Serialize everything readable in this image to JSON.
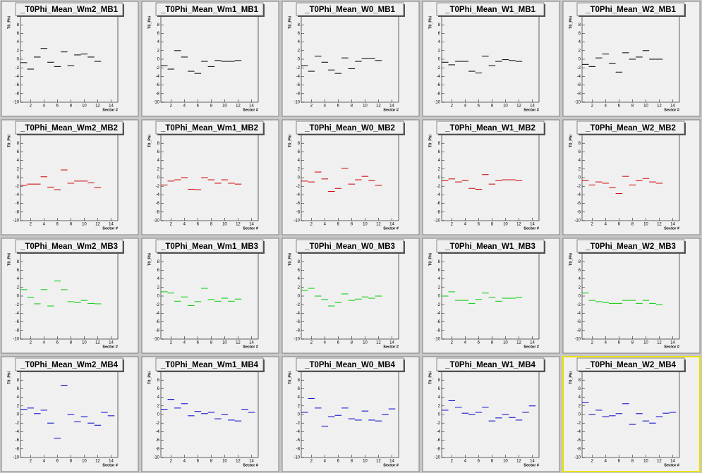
{
  "chart_data": [
    {
      "type": "scatter",
      "title": "_T0Phi_Mean_Wm2_MB1",
      "x_label": "Sector #",
      "y_label": "T0_Phi",
      "color": "#000000",
      "xlim": [
        0.5,
        15
      ],
      "ylim": [
        -10,
        10
      ],
      "xticks": [
        2,
        4,
        6,
        8,
        10,
        12,
        14
      ],
      "yticks": [
        -10,
        -8,
        -6,
        -4,
        -2,
        0,
        2,
        4,
        6,
        8
      ],
      "x": [
        1,
        2,
        3,
        4,
        5,
        6,
        7,
        8,
        9,
        10,
        11,
        12
      ],
      "values": [
        -0.8,
        -2.3,
        0.5,
        2.5,
        -0.7,
        -1.7,
        1.7,
        -1.5,
        1,
        1.2,
        0.5,
        -0.5
      ]
    },
    {
      "type": "scatter",
      "title": "_T0Phi_Mean_Wm1_MB1",
      "x_label": "Sector #",
      "y_label": "T0_Phi",
      "color": "#000000",
      "xlim": [
        0.5,
        15
      ],
      "ylim": [
        -10,
        10
      ],
      "xticks": [
        2,
        4,
        6,
        8,
        10,
        12,
        14
      ],
      "yticks": [
        -10,
        -8,
        -6,
        -4,
        -2,
        0,
        2,
        4,
        6,
        8
      ],
      "x": [
        1,
        2,
        3,
        4,
        5,
        6,
        7,
        8,
        9,
        10,
        11,
        12
      ],
      "values": [
        -1.5,
        -2.3,
        2,
        0.5,
        -2.8,
        -3.3,
        -0.5,
        -1.7,
        -0.3,
        -0.5,
        -0.5,
        -0.3
      ]
    },
    {
      "type": "scatter",
      "title": "_T0Phi_Mean_W0_MB1",
      "x_label": "Sector #",
      "y_label": "T0_Phi",
      "color": "#000000",
      "xlim": [
        0.5,
        15
      ],
      "ylim": [
        -10,
        10
      ],
      "xticks": [
        2,
        4,
        6,
        8,
        10,
        12,
        14
      ],
      "yticks": [
        -10,
        -8,
        -6,
        -4,
        -2,
        0,
        2,
        4,
        6,
        8
      ],
      "x": [
        1,
        2,
        3,
        4,
        5,
        6,
        7,
        8,
        9,
        10,
        11,
        12
      ],
      "values": [
        -1.5,
        -2.8,
        0.7,
        -0.7,
        -2.5,
        -3.3,
        0.3,
        -2.2,
        -0.5,
        0.2,
        0.2,
        -0.3
      ]
    },
    {
      "type": "scatter",
      "title": "_T0Phi_Mean_W1_MB1",
      "x_label": "Sector #",
      "y_label": "T0_Phi",
      "color": "#000000",
      "xlim": [
        0.5,
        15
      ],
      "ylim": [
        -10,
        10
      ],
      "xticks": [
        2,
        4,
        6,
        8,
        10,
        12,
        14
      ],
      "yticks": [
        -10,
        -8,
        -6,
        -4,
        -2,
        0,
        2,
        4,
        6,
        8
      ],
      "x": [
        1,
        2,
        3,
        4,
        5,
        6,
        7,
        8,
        9,
        10,
        11,
        12
      ],
      "values": [
        -0.7,
        -1.3,
        -0.5,
        -0.5,
        -2.8,
        -3.2,
        0.7,
        -1.5,
        -0.5,
        -0.1,
        -0.3,
        -0.5
      ]
    },
    {
      "type": "scatter",
      "title": "_T0Phi_Mean_W2_MB1",
      "x_label": "Sector #",
      "y_label": "T0_Phi",
      "color": "#000000",
      "xlim": [
        0.5,
        15
      ],
      "ylim": [
        -10,
        10
      ],
      "xticks": [
        2,
        4,
        6,
        8,
        10,
        12,
        14
      ],
      "yticks": [
        -10,
        -8,
        -6,
        -4,
        -2,
        0,
        2,
        4,
        6,
        8
      ],
      "x": [
        1,
        2,
        3,
        4,
        5,
        6,
        7,
        8,
        9,
        10,
        11,
        12
      ],
      "values": [
        -1.2,
        -1.7,
        0.3,
        1.2,
        -1,
        -3,
        1.5,
        0,
        0.5,
        2,
        0,
        0
      ]
    },
    {
      "type": "scatter",
      "title": "_T0Phi_Mean_Wm2_MB2",
      "x_label": "Sector #",
      "y_label": "T0_Phi",
      "color": "#cc0000",
      "xlim": [
        0.5,
        15
      ],
      "ylim": [
        -10,
        10
      ],
      "xticks": [
        2,
        4,
        6,
        8,
        10,
        12,
        14
      ],
      "yticks": [
        -10,
        -8,
        -6,
        -4,
        -2,
        0,
        2,
        4,
        6,
        8
      ],
      "x": [
        1,
        2,
        3,
        4,
        5,
        6,
        7,
        8,
        9,
        10,
        11,
        12
      ],
      "values": [
        -1.8,
        -1.5,
        -1.5,
        0.2,
        -2.2,
        -2.8,
        1.8,
        -1.3,
        -0.8,
        -0.8,
        -1.2,
        -2.3
      ]
    },
    {
      "type": "scatter",
      "title": "_T0Phi_Mean_Wm1_MB2",
      "x_label": "Sector #",
      "y_label": "T0_Phi",
      "color": "#cc0000",
      "xlim": [
        0.5,
        15
      ],
      "ylim": [
        -10,
        10
      ],
      "xticks": [
        2,
        4,
        6,
        8,
        10,
        12,
        14
      ],
      "yticks": [
        -10,
        -8,
        -6,
        -4,
        -2,
        0,
        2,
        4,
        6,
        8
      ],
      "x": [
        1,
        2,
        3,
        4,
        5,
        6,
        7,
        8,
        9,
        10,
        11,
        12
      ],
      "values": [
        -1.7,
        -0.8,
        -0.5,
        0,
        -2.7,
        -2.8,
        0,
        -0.5,
        -1.3,
        -0.5,
        -1.3,
        -1.5
      ]
    },
    {
      "type": "scatter",
      "title": "_T0Phi_Mean_W0_MB2",
      "x_label": "Sector #",
      "y_label": "T0_Phi",
      "color": "#cc0000",
      "xlim": [
        0.5,
        15
      ],
      "ylim": [
        -10,
        10
      ],
      "xticks": [
        2,
        4,
        6,
        8,
        10,
        12,
        14
      ],
      "yticks": [
        -10,
        -8,
        -6,
        -4,
        -2,
        0,
        2,
        4,
        6,
        8
      ],
      "x": [
        1,
        2,
        3,
        4,
        5,
        6,
        7,
        8,
        9,
        10,
        11,
        12
      ],
      "values": [
        -0.8,
        -1,
        1.3,
        -0.3,
        -3.2,
        -2.5,
        2.2,
        -1.5,
        -0.5,
        0.3,
        -0.7,
        -1.8
      ]
    },
    {
      "type": "scatter",
      "title": "_T0Phi_Mean_W1_MB2",
      "x_label": "Sector #",
      "y_label": "T0_Phi",
      "color": "#cc0000",
      "xlim": [
        0.5,
        15
      ],
      "ylim": [
        -10,
        10
      ],
      "xticks": [
        2,
        4,
        6,
        8,
        10,
        12,
        14
      ],
      "yticks": [
        -10,
        -8,
        -6,
        -4,
        -2,
        0,
        2,
        4,
        6,
        8
      ],
      "x": [
        1,
        2,
        3,
        4,
        5,
        6,
        7,
        8,
        9,
        10,
        11,
        12
      ],
      "values": [
        -0.7,
        -0.3,
        -1,
        -0.7,
        -2.5,
        -2.7,
        0.7,
        -1.5,
        -0.7,
        -0.5,
        -0.5,
        -0.7
      ]
    },
    {
      "type": "scatter",
      "title": "_T0Phi_Mean_W2_MB2",
      "x_label": "Sector #",
      "y_label": "T0_Phi",
      "color": "#cc0000",
      "xlim": [
        0.5,
        15
      ],
      "ylim": [
        -10,
        10
      ],
      "xticks": [
        2,
        4,
        6,
        8,
        10,
        12,
        14
      ],
      "yticks": [
        -10,
        -8,
        -6,
        -4,
        -2,
        0,
        2,
        4,
        6,
        8
      ],
      "x": [
        1,
        2,
        3,
        4,
        5,
        6,
        7,
        8,
        9,
        10,
        11,
        12
      ],
      "values": [
        -0.7,
        -1.7,
        -1,
        -1.3,
        -2.3,
        -3.7,
        0.3,
        -1.7,
        -0.7,
        -0.2,
        -1,
        -1.3
      ]
    },
    {
      "type": "scatter",
      "title": "_T0Phi_Mean_Wm2_MB3",
      "x_label": "Sector #",
      "y_label": "T0_Phi",
      "color": "#00cc00",
      "xlim": [
        0.5,
        15
      ],
      "ylim": [
        -10,
        10
      ],
      "xticks": [
        2,
        4,
        6,
        8,
        10,
        12,
        14
      ],
      "yticks": [
        -10,
        -8,
        -6,
        -4,
        -2,
        0,
        2,
        4,
        6,
        8
      ],
      "x": [
        1,
        2,
        3,
        4,
        5,
        6,
        7,
        8,
        9,
        10,
        11,
        12
      ],
      "values": [
        1.5,
        -0.3,
        -1.8,
        1.5,
        -2.3,
        3.5,
        1.5,
        -1.3,
        -1.5,
        -1,
        -1.7,
        -1.8
      ]
    },
    {
      "type": "scatter",
      "title": "_T0Phi_Mean_Wm1_MB3",
      "x_label": "Sector #",
      "y_label": "T0_Phi",
      "color": "#00cc00",
      "xlim": [
        0.5,
        15
      ],
      "ylim": [
        -10,
        10
      ],
      "xticks": [
        2,
        4,
        6,
        8,
        10,
        12,
        14
      ],
      "yticks": [
        -10,
        -8,
        -6,
        -4,
        -2,
        0,
        2,
        4,
        6,
        8
      ],
      "x": [
        1,
        2,
        3,
        4,
        5,
        6,
        7,
        8,
        9,
        10,
        11,
        12
      ],
      "values": [
        1,
        0.7,
        -1.2,
        -0.2,
        -2.2,
        -1.3,
        1.8,
        -0.8,
        -1.2,
        -0.5,
        -1.2,
        -0.7
      ]
    },
    {
      "type": "scatter",
      "title": "_T0Phi_Mean_W0_MB3",
      "x_label": "Sector #",
      "y_label": "T0_Phi",
      "color": "#00cc00",
      "xlim": [
        0.5,
        15
      ],
      "ylim": [
        -10,
        10
      ],
      "xticks": [
        2,
        4,
        6,
        8,
        10,
        12,
        14
      ],
      "yticks": [
        -10,
        -8,
        -6,
        -4,
        -2,
        0,
        2,
        4,
        6,
        8
      ],
      "x": [
        1,
        2,
        3,
        4,
        5,
        6,
        7,
        8,
        9,
        10,
        11,
        12
      ],
      "values": [
        1.3,
        1.8,
        0,
        -0.8,
        -2.3,
        -1.5,
        0.5,
        -1,
        -0.7,
        -0.2,
        -0.5,
        0
      ]
    },
    {
      "type": "scatter",
      "title": "_T0Phi_Mean_W1_MB3",
      "x_label": "Sector #",
      "y_label": "T0_Phi",
      "color": "#00cc00",
      "xlim": [
        0.5,
        15
      ],
      "ylim": [
        -10,
        10
      ],
      "xticks": [
        2,
        4,
        6,
        8,
        10,
        12,
        14
      ],
      "yticks": [
        -10,
        -8,
        -6,
        -4,
        -2,
        0,
        2,
        4,
        6,
        8
      ],
      "x": [
        1,
        2,
        3,
        4,
        5,
        6,
        7,
        8,
        9,
        10,
        11,
        12
      ],
      "values": [
        0,
        1,
        -1,
        -1,
        -1.7,
        -0.8,
        0.7,
        -0.3,
        -1.2,
        -0.5,
        -0.5,
        -0.3
      ]
    },
    {
      "type": "scatter",
      "title": "_T0Phi_Mean_W2_MB3",
      "x_label": "Sector #",
      "y_label": "T0_Phi",
      "color": "#00cc00",
      "xlim": [
        0.5,
        15
      ],
      "ylim": [
        -10,
        10
      ],
      "xticks": [
        2,
        4,
        6,
        8,
        10,
        12,
        14
      ],
      "yticks": [
        -10,
        -8,
        -6,
        -4,
        -2,
        0,
        2,
        4,
        6,
        8
      ],
      "x": [
        1,
        2,
        3,
        4,
        5,
        6,
        7,
        8,
        9,
        10,
        11,
        12
      ],
      "values": [
        0.7,
        -1,
        -1.3,
        -1.5,
        -1.7,
        -1.7,
        -1,
        -1,
        -1.7,
        -1,
        -1.7,
        -2
      ]
    },
    {
      "type": "scatter",
      "title": "_T0Phi_Mean_Wm2_MB4",
      "x_label": "Sector #",
      "y_label": "T0_Phi",
      "color": "#0000cc",
      "xlim": [
        0.5,
        15
      ],
      "ylim": [
        -10,
        10
      ],
      "xticks": [
        2,
        4,
        6,
        8,
        10,
        12,
        14
      ],
      "yticks": [
        -10,
        -8,
        -6,
        -4,
        -2,
        0,
        2,
        4,
        6,
        8
      ],
      "x": [
        1,
        2,
        3,
        4,
        5,
        6,
        7,
        8,
        9,
        10,
        11,
        12,
        13,
        14
      ],
      "values": [
        1.2,
        1.5,
        0.2,
        1,
        -2,
        -5.5,
        6.8,
        0,
        -1.7,
        -0.5,
        -2,
        -2.5,
        0.5,
        -0.3
      ]
    },
    {
      "type": "scatter",
      "title": "_T0Phi_Mean_Wm1_MB4",
      "x_label": "Sector #",
      "y_label": "T0_Phi",
      "color": "#0000cc",
      "xlim": [
        0.5,
        15
      ],
      "ylim": [
        -10,
        10
      ],
      "xticks": [
        2,
        4,
        6,
        8,
        10,
        12,
        14
      ],
      "yticks": [
        -10,
        -8,
        -6,
        -4,
        -2,
        0,
        2,
        4,
        6,
        8
      ],
      "x": [
        1,
        2,
        3,
        4,
        5,
        6,
        7,
        8,
        9,
        10,
        11,
        12,
        13,
        14
      ],
      "values": [
        1.2,
        3.5,
        1.5,
        2.5,
        -0.3,
        0.7,
        0.2,
        0.5,
        -1,
        0,
        -1.3,
        -1.5,
        1.2,
        0.5
      ]
    },
    {
      "type": "scatter",
      "title": "_T0Phi_Mean_W0_MB4",
      "x_label": "Sector #",
      "y_label": "T0_Phi",
      "color": "#0000cc",
      "xlim": [
        0.5,
        15
      ],
      "ylim": [
        -10,
        10
      ],
      "xticks": [
        2,
        4,
        6,
        8,
        10,
        12,
        14
      ],
      "yticks": [
        -10,
        -8,
        -6,
        -4,
        -2,
        0,
        2,
        4,
        6,
        8
      ],
      "x": [
        1,
        2,
        3,
        4,
        5,
        6,
        7,
        8,
        9,
        10,
        11,
        12,
        13,
        14
      ],
      "values": [
        0.5,
        3.7,
        1.5,
        -2.7,
        -0.5,
        -0.2,
        1.5,
        -1,
        -1.3,
        0.8,
        -1.3,
        -1.5,
        0,
        1.3
      ]
    },
    {
      "type": "scatter",
      "title": "_T0Phi_Mean_W1_MB4",
      "x_label": "Sector #",
      "y_label": "T0_Phi",
      "color": "#0000cc",
      "xlim": [
        0.5,
        15
      ],
      "ylim": [
        -10,
        10
      ],
      "xticks": [
        2,
        4,
        6,
        8,
        10,
        12,
        14
      ],
      "yticks": [
        -10,
        -8,
        -6,
        -4,
        -2,
        0,
        2,
        4,
        6,
        8
      ],
      "x": [
        1,
        2,
        3,
        4,
        5,
        6,
        7,
        8,
        9,
        10,
        11,
        12,
        13,
        14
      ],
      "values": [
        1,
        3.2,
        1.7,
        0.3,
        0,
        0.5,
        1.7,
        -1.5,
        -0.8,
        0,
        -0.7,
        -1.3,
        0.5,
        2
      ]
    },
    {
      "type": "scatter",
      "title": "_T0Phi_Mean_W2_MB4",
      "x_label": "Sector #",
      "y_label": "T0_Phi",
      "color": "#0000cc",
      "highlighted": true,
      "xlim": [
        0.5,
        15
      ],
      "ylim": [
        -10,
        10
      ],
      "xticks": [
        2,
        4,
        6,
        8,
        10,
        12,
        14
      ],
      "yticks": [
        -10,
        -8,
        -6,
        -4,
        -2,
        0,
        2,
        4,
        6,
        8
      ],
      "x": [
        1,
        2,
        3,
        4,
        5,
        6,
        7,
        8,
        9,
        10,
        11,
        12,
        13,
        14
      ],
      "values": [
        2.8,
        0,
        1,
        -0.5,
        -0.3,
        0.2,
        2.5,
        -2.3,
        0.2,
        -1.5,
        -2,
        -0.5,
        0.3,
        0.5
      ]
    }
  ]
}
